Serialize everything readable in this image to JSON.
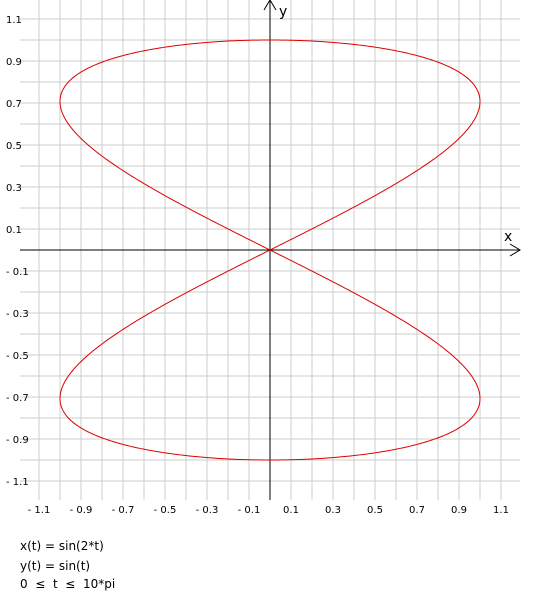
{
  "chart_data": {
    "type": "line",
    "xlabel": "x",
    "ylabel": "y",
    "xlim": [
      -1.2,
      1.2
    ],
    "ylim": [
      -1.2,
      1.2
    ],
    "grid": true,
    "grid_step": 0.1,
    "x_tick_labels": [
      "- 1.1",
      "- 0.9",
      "- 0.7",
      "- 0.5",
      "- 0.3",
      "- 0.1",
      "0.1",
      "0.3",
      "0.5",
      "0.7",
      "0.9",
      "1.1"
    ],
    "x_tick_values": [
      -1.1,
      -0.9,
      -0.7,
      -0.5,
      -0.3,
      -0.1,
      0.1,
      0.3,
      0.5,
      0.7,
      0.9,
      1.1
    ],
    "y_tick_labels": [
      "1.1",
      "0.9",
      "0.7",
      "0.5",
      "0.3",
      "0.1",
      "- 0.1",
      "- 0.3",
      "- 0.5",
      "- 0.7",
      "- 0.9",
      "- 1.1"
    ],
    "y_tick_values": [
      1.1,
      0.9,
      0.7,
      0.5,
      0.3,
      0.1,
      -0.1,
      -0.3,
      -0.5,
      -0.7,
      -0.9,
      -1.1
    ],
    "series": [
      {
        "x_expr": "sin(2*t)",
        "y_expr": "sin(t)",
        "t_range": [
          0,
          31.4159265
        ],
        "color": "#dd0000"
      }
    ]
  },
  "equations": {
    "x": "x(t) = sin(2*t)",
    "y": "y(t) = sin(t)",
    "range": "0  ≤  t  ≤  10*pi"
  },
  "colors": {
    "grid": "#cccccc",
    "axis": "#000000",
    "curve": "#dd0000"
  }
}
